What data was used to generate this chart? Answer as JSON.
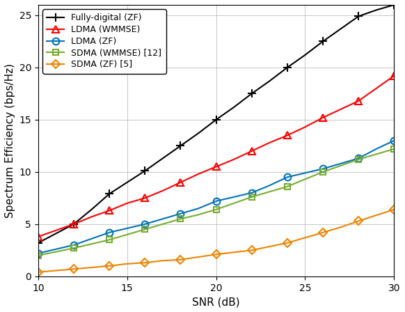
{
  "snr": [
    10,
    11,
    12,
    13,
    14,
    15,
    16,
    17,
    18,
    19,
    20,
    21,
    22,
    23,
    24,
    25,
    26,
    27,
    28,
    29,
    30
  ],
  "fully_digital_zf": [
    3.2,
    4.1,
    5.0,
    6.4,
    7.9,
    9.0,
    10.1,
    11.3,
    12.5,
    13.7,
    15.0,
    16.2,
    17.5,
    18.7,
    20.0,
    21.2,
    22.5,
    23.7,
    24.9,
    25.5,
    26.0
  ],
  "ldma_wmmse": [
    3.8,
    4.4,
    5.0,
    5.7,
    6.3,
    7.0,
    7.5,
    8.2,
    9.0,
    9.8,
    10.5,
    11.2,
    12.0,
    12.8,
    13.5,
    14.3,
    15.2,
    16.0,
    16.8,
    18.0,
    19.2
  ],
  "ldma_zf": [
    2.2,
    2.6,
    3.0,
    3.6,
    4.2,
    4.6,
    5.0,
    5.5,
    6.0,
    6.5,
    7.2,
    7.6,
    8.0,
    8.7,
    9.5,
    9.9,
    10.3,
    10.8,
    11.3,
    12.2,
    13.0
  ],
  "sdma_wmmse": [
    2.0,
    2.35,
    2.7,
    3.1,
    3.5,
    4.0,
    4.5,
    5.0,
    5.5,
    5.9,
    6.4,
    7.0,
    7.6,
    8.1,
    8.6,
    9.3,
    10.0,
    10.6,
    11.2,
    11.7,
    12.2
  ],
  "sdma_zf": [
    0.4,
    0.55,
    0.7,
    0.85,
    1.0,
    1.2,
    1.3,
    1.5,
    1.6,
    1.85,
    2.1,
    2.3,
    2.5,
    2.85,
    3.2,
    3.7,
    4.2,
    4.7,
    5.3,
    5.85,
    6.4
  ],
  "colors": {
    "fully_digital_zf": "#000000",
    "ldma_wmmse": "#FF0000",
    "ldma_zf": "#0072BD",
    "sdma_wmmse": "#77AC30",
    "sdma_zf": "#EE8400"
  },
  "labels": {
    "fully_digital_zf": "Fully-digital (ZF)",
    "ldma_wmmse": "LDMA (WMMSE)",
    "ldma_zf": "LDMA (ZF)",
    "sdma_wmmse": "SDMA (WMMSE) [12]",
    "sdma_zf": "SDMA (ZF) [5]"
  },
  "xlabel": "SNR (dB)",
  "ylabel": "Spectrum Efficiency (bps/Hz)",
  "xlim": [
    10,
    30
  ],
  "ylim": [
    0,
    26
  ],
  "xticks": [
    10,
    15,
    20,
    25,
    30
  ],
  "yticks": [
    0,
    5,
    10,
    15,
    20,
    25
  ],
  "grid": true,
  "legend_loc": "upper left",
  "marker_every": 2
}
